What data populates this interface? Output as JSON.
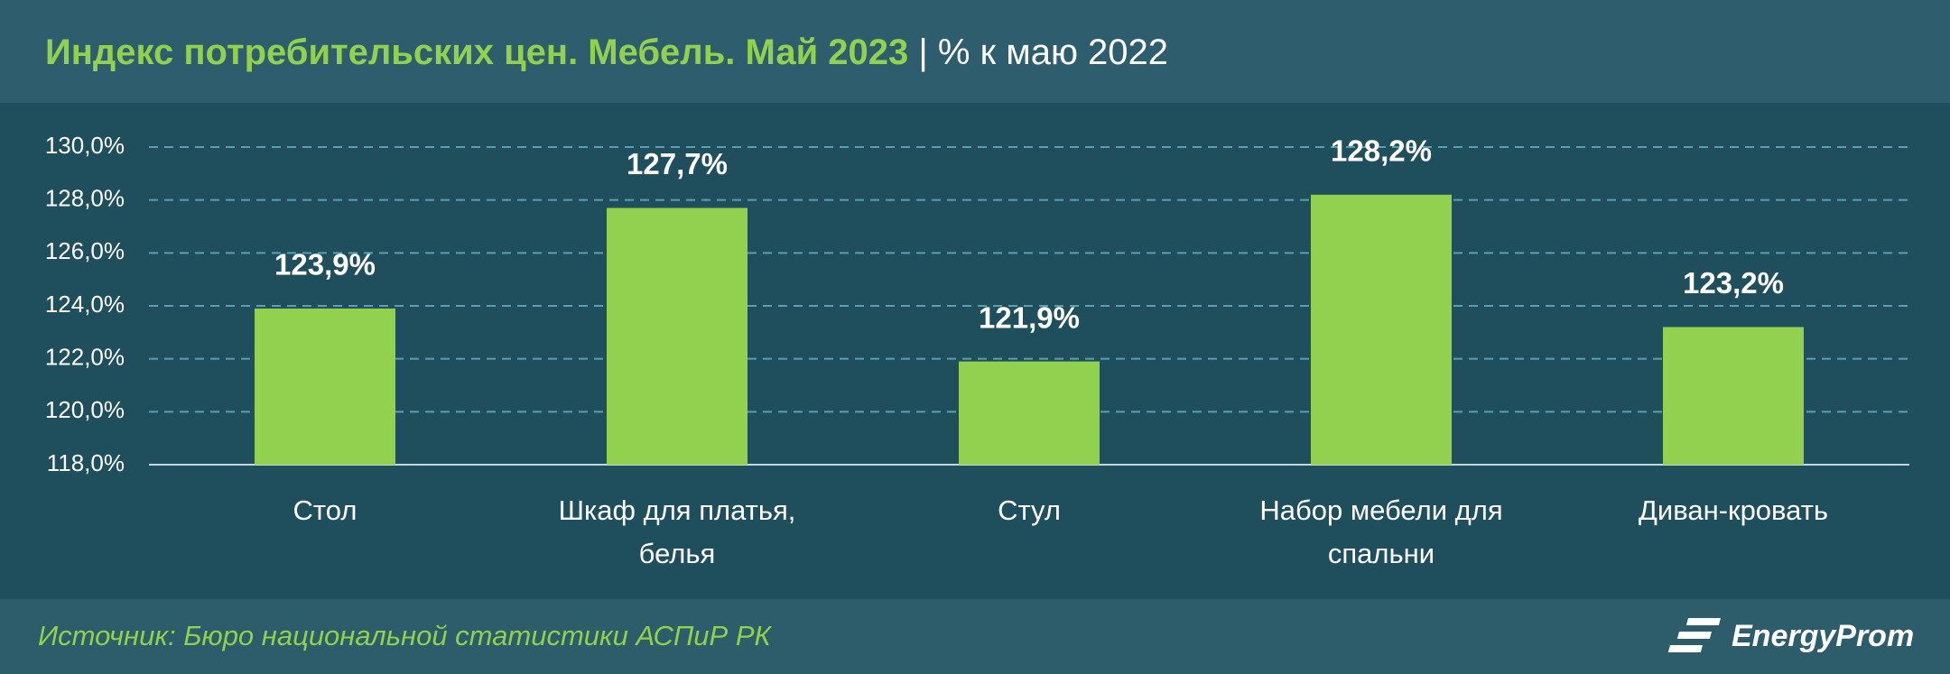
{
  "chart_data": {
    "type": "bar",
    "title": "Индекс потребительских цен. Мебель. Май 2023",
    "subtitle": "% к маю 2022",
    "categories": [
      "Стол",
      "Шкаф для платья, белья",
      "Стул",
      "Набор мебели для спальни",
      "Диван-кровать"
    ],
    "values": [
      123.9,
      127.7,
      121.9,
      128.2,
      123.2
    ],
    "value_labels": [
      "123,9%",
      "127,7%",
      "121,9%",
      "128,2%",
      "123,2%"
    ],
    "color": "#92d050",
    "ylim": [
      118,
      130
    ],
    "yticks": [
      {
        "value": 118,
        "label": "118,0%"
      },
      {
        "value": 120,
        "label": "120,0%"
      },
      {
        "value": 122,
        "label": "122,0%"
      },
      {
        "value": 124,
        "label": "124,0%"
      },
      {
        "value": 126,
        "label": "126,0%"
      },
      {
        "value": 128,
        "label": "128,0%"
      },
      {
        "value": 130,
        "label": "130,0%"
      }
    ],
    "grid": true,
    "source": "Источник: Бюро национальной статистики АСПиР РК",
    "brand": "EnergyProm"
  }
}
